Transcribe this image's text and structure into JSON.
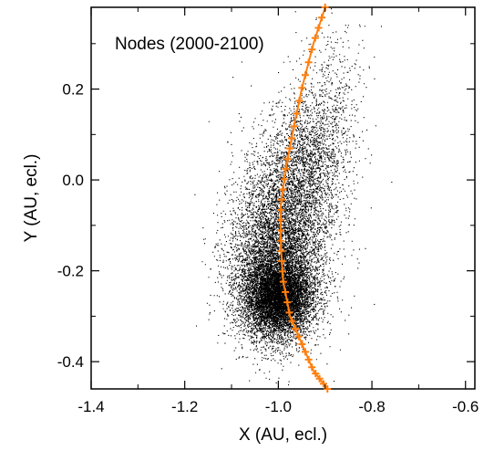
{
  "chart_data": {
    "type": "scatter",
    "title": "Nodes (2000-2100)",
    "xlabel": "X (AU, ecl.)",
    "ylabel": "Y (AU, ecl.)",
    "xlim": [
      -1.4,
      -0.58
    ],
    "ylim": [
      -0.46,
      0.38
    ],
    "xticks": [
      -1.4,
      -1.2,
      -1.0,
      -0.8,
      -0.6
    ],
    "xtick_labels": [
      "-1.4",
      "-1.2",
      "-1.0",
      "-0.8",
      "-0.6"
    ],
    "yticks": [
      0.2,
      0.0,
      -0.2,
      -0.4
    ],
    "ytick_labels": [
      "0.2",
      "0.0",
      "-0.2",
      "-0.4"
    ],
    "grid": false,
    "series": [
      {
        "kind": "point-cloud",
        "color": "#000000",
        "clusters": [
          {
            "center": [
              -1.0,
              -0.26
            ],
            "spread": [
              0.035,
              0.04
            ],
            "n": 6000
          },
          {
            "center": [
              -1.01,
              -0.2
            ],
            "spread": [
              0.05,
              0.08
            ],
            "n": 4500
          },
          {
            "center": [
              -0.98,
              -0.06
            ],
            "spread": [
              0.05,
              0.09
            ],
            "n": 3000
          },
          {
            "center": [
              -0.93,
              0.06
            ],
            "spread": [
              0.04,
              0.07
            ],
            "n": 1200
          },
          {
            "center": [
              -0.88,
              0.2
            ],
            "spread": [
              0.04,
              0.08
            ],
            "n": 350
          }
        ]
      },
      {
        "kind": "orbit-track",
        "marker": "plus",
        "color": "#FF7F0E",
        "x": [
          -0.9,
          -0.925,
          -0.95,
          -0.97,
          -0.985,
          -0.995,
          -0.995,
          -0.99,
          -0.975,
          -0.95,
          -0.925,
          -0.895
        ],
        "y": [
          0.38,
          0.3,
          0.2,
          0.1,
          0.02,
          -0.06,
          -0.14,
          -0.22,
          -0.3,
          -0.36,
          -0.42,
          -0.46
        ]
      }
    ]
  }
}
